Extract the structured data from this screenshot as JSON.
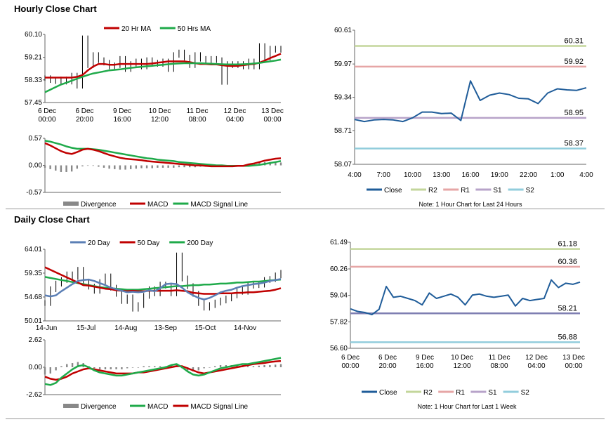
{
  "hourly": {
    "title": "Hourly Close Chart",
    "price_chart": {
      "type": "line",
      "legend": [
        "20 Hr MA",
        "50 Hrs MA"
      ],
      "y_ticks": [
        "60.10",
        "59.21",
        "58.33",
        "57.45"
      ],
      "ylim": [
        57.45,
        60.1
      ],
      "x_ticks": [
        [
          "6 Dec",
          "00:00"
        ],
        [
          "6 Dec",
          "20:00"
        ],
        [
          "9 Dec",
          "16:00"
        ],
        [
          "10 Dec",
          "12:00"
        ],
        [
          "11 Dec",
          "08:00"
        ],
        [
          "12 Dec",
          "04:00"
        ],
        [
          "13 Dec",
          "00:00"
        ]
      ],
      "close": [
        58.4,
        58.32,
        58.28,
        58.35,
        58.26,
        58.5,
        58.1,
        59.95,
        58.9,
        59.3,
        59.1,
        59.0,
        58.85,
        58.9,
        59.15,
        58.75,
        58.95,
        59.05,
        58.85,
        59.1,
        59.0,
        58.95,
        59.05,
        58.75,
        59.3,
        59.4,
        59.2,
        58.9,
        59.3,
        59.15,
        59.05,
        59.15,
        59.1,
        58.25,
        58.95,
        58.9,
        58.95,
        58.85,
        59.05,
        58.85,
        59.65,
        59.2,
        59.55,
        59.5,
        59.55
      ],
      "ma20": [
        58.42,
        58.42,
        58.42,
        58.42,
        58.42,
        58.42,
        58.45,
        58.52,
        58.7,
        58.85,
        58.95,
        58.95,
        58.92,
        58.92,
        58.95,
        58.95,
        58.95,
        58.95,
        58.95,
        58.95,
        58.97,
        59.0,
        59.02,
        59.05,
        59.05,
        59.05,
        59.05,
        59.02,
        58.98,
        58.95,
        58.95,
        58.93,
        58.93,
        58.9,
        58.88,
        58.87,
        58.88,
        58.9,
        58.93,
        58.95,
        59.0,
        59.08,
        59.18,
        59.26,
        59.35
      ],
      "ma50": [
        57.85,
        57.95,
        58.05,
        58.15,
        58.22,
        58.3,
        58.38,
        58.45,
        58.52,
        58.58,
        58.62,
        58.66,
        58.7,
        58.72,
        58.74,
        58.77,
        58.8,
        58.82,
        58.84,
        58.86,
        58.88,
        58.9,
        58.92,
        58.94,
        58.96,
        58.97,
        58.98,
        58.98,
        58.98,
        58.98,
        58.97,
        58.96,
        58.95,
        58.94,
        58.93,
        58.93,
        58.93,
        58.94,
        58.95,
        58.97,
        58.99,
        59.02,
        59.05,
        59.08,
        59.12
      ]
    },
    "macd_chart": {
      "type": "line",
      "legend": [
        "Divergence",
        "MACD",
        "MACD Signal Line"
      ],
      "y_ticks": [
        "0.57",
        "0.00",
        "-0.57"
      ],
      "ylim": [
        -0.57,
        0.57
      ],
      "macd": [
        0.47,
        0.42,
        0.36,
        0.3,
        0.26,
        0.24,
        0.28,
        0.33,
        0.35,
        0.33,
        0.3,
        0.26,
        0.22,
        0.19,
        0.16,
        0.14,
        0.13,
        0.12,
        0.11,
        0.09,
        0.08,
        0.07,
        0.06,
        0.05,
        0.04,
        0.03,
        0.02,
        0.01,
        0.0,
        0.0,
        -0.01,
        -0.02,
        -0.02,
        -0.02,
        -0.02,
        -0.02,
        -0.01,
        -0.01,
        0.02,
        0.04,
        0.07,
        0.1,
        0.12,
        0.14,
        0.15
      ],
      "signal": [
        0.52,
        0.5,
        0.47,
        0.44,
        0.4,
        0.37,
        0.35,
        0.35,
        0.35,
        0.34,
        0.33,
        0.31,
        0.29,
        0.27,
        0.25,
        0.23,
        0.21,
        0.19,
        0.17,
        0.15,
        0.14,
        0.12,
        0.11,
        0.1,
        0.09,
        0.07,
        0.06,
        0.05,
        0.04,
        0.03,
        0.02,
        0.01,
        0.0,
        0.0,
        -0.01,
        -0.01,
        -0.01,
        -0.01,
        -0.01,
        0.0,
        0.01,
        0.03,
        0.05,
        0.07,
        0.09
      ],
      "divergence": [
        -0.05,
        -0.08,
        -0.11,
        -0.14,
        -0.14,
        -0.13,
        -0.07,
        -0.02,
        0.0,
        -0.01,
        -0.03,
        -0.05,
        -0.07,
        -0.08,
        -0.09,
        -0.09,
        -0.08,
        -0.07,
        -0.06,
        -0.06,
        -0.06,
        -0.05,
        -0.05,
        -0.05,
        -0.05,
        -0.04,
        -0.04,
        -0.04,
        -0.04,
        -0.03,
        -0.03,
        -0.03,
        -0.02,
        -0.02,
        -0.01,
        -0.01,
        0.0,
        0.0,
        0.03,
        0.04,
        0.06,
        0.07,
        0.07,
        0.07,
        0.06
      ]
    },
    "levels_chart": {
      "type": "line",
      "y_ticks": [
        "60.61",
        "59.97",
        "59.34",
        "58.71",
        "58.07"
      ],
      "ylim": [
        58.07,
        60.61
      ],
      "x_ticks": [
        "4:00",
        "7:00",
        "10:00",
        "13:00",
        "16:00",
        "19:00",
        "22:00",
        "1:00",
        "4:00"
      ],
      "close": [
        58.92,
        58.88,
        58.91,
        58.92,
        58.91,
        58.88,
        58.95,
        59.06,
        59.06,
        59.03,
        59.04,
        58.9,
        59.65,
        59.28,
        59.38,
        59.42,
        59.39,
        59.32,
        59.31,
        59.22,
        59.42,
        59.5,
        59.48,
        59.47,
        59.52
      ],
      "levels": {
        "R2": 60.31,
        "R1": 59.92,
        "S1": 58.95,
        "S2": 58.37
      },
      "level_labels": [
        "60.31",
        "59.92",
        "58.95",
        "58.37"
      ],
      "legend": [
        "Close",
        "R2",
        "R1",
        "S1",
        "S2"
      ],
      "note": "Note: 1 Hour Chart for Last 24 Hours"
    }
  },
  "daily": {
    "title": "Daily Close Chart",
    "price_chart": {
      "type": "line",
      "legend": [
        "20 Day",
        "50 Day",
        "200 Day"
      ],
      "y_ticks": [
        "64.01",
        "59.35",
        "54.68",
        "50.01"
      ],
      "ylim": [
        50.01,
        64.01
      ],
      "x_ticks": [
        "14-Jun",
        "15-Jul",
        "14-Aug",
        "13-Sep",
        "15-Oct",
        "14-Nov"
      ],
      "close": [
        53.5,
        56.2,
        57.3,
        58.0,
        59.1,
        58.6,
        60.0,
        57.6,
        56.7,
        55.9,
        57.6,
        58.7,
        56.5,
        55.3,
        53.9,
        54.6,
        52.4,
        53.1,
        54.9,
        56.2,
        55.4,
        57.1,
        56.9,
        55.4,
        62.8,
        58.3,
        56.8,
        55.3,
        53.5,
        52.6,
        53.1,
        53.6,
        54.0,
        54.4,
        55.0,
        56.1,
        55.7,
        56.9,
        57.0,
        57.1,
        58.0,
        58.2,
        58.9,
        59.4
      ],
      "ma20": [
        55.0,
        54.8,
        55.0,
        55.8,
        56.5,
        57.2,
        57.8,
        58.0,
        58.1,
        57.8,
        57.4,
        57.0,
        56.5,
        56.2,
        55.9,
        55.6,
        55.7,
        55.6,
        55.7,
        56.0,
        55.8,
        56.4,
        57.2,
        57.3,
        57.2,
        56.5,
        55.6,
        55.0,
        54.5,
        54.2,
        54.5,
        55.0,
        55.6,
        55.9,
        56.1,
        56.5,
        56.8,
        57.0,
        57.2,
        57.3,
        57.5,
        57.8,
        58.0,
        58.2
      ],
      "ma50": [
        60.5,
        60.0,
        59.5,
        59.0,
        58.5,
        58.0,
        57.5,
        57.0,
        56.9,
        56.7,
        56.5,
        56.3,
        56.2,
        56.0,
        55.9,
        55.8,
        55.9,
        55.8,
        55.8,
        55.9,
        55.9,
        55.9,
        55.9,
        55.9,
        56.0,
        55.9,
        55.8,
        55.5,
        55.4,
        55.3,
        55.3,
        55.3,
        55.4,
        55.4,
        55.4,
        55.5,
        55.5,
        55.6,
        55.6,
        55.7,
        55.8,
        55.9,
        56.1,
        56.4
      ],
      "ma200": [
        58.6,
        58.4,
        58.2,
        58.0,
        57.8,
        57.6,
        57.4,
        57.2,
        57.0,
        56.8,
        56.6,
        56.5,
        56.4,
        56.3,
        56.2,
        56.1,
        56.1,
        56.1,
        56.2,
        56.3,
        56.4,
        56.5,
        56.6,
        56.7,
        56.8,
        56.8,
        56.9,
        57.0,
        57.0,
        57.1,
        57.1,
        57.2,
        57.3,
        57.3,
        57.4,
        57.5,
        57.5,
        57.6,
        57.7,
        57.7,
        57.8,
        57.9,
        58.0,
        58.1
      ]
    },
    "macd_chart": {
      "type": "line",
      "legend": [
        "Divergence",
        "MACD",
        "MACD Signal Line"
      ],
      "y_ticks": [
        "2.62",
        "0.00",
        "-2.62"
      ],
      "ylim": [
        -2.62,
        2.62
      ],
      "macd": [
        -1.6,
        -1.7,
        -1.5,
        -1.0,
        -0.6,
        -0.2,
        0.1,
        0.2,
        0.0,
        -0.3,
        -0.5,
        -0.6,
        -0.7,
        -0.8,
        -0.8,
        -0.7,
        -0.6,
        -0.5,
        -0.4,
        -0.3,
        -0.2,
        -0.1,
        0.0,
        0.2,
        0.3,
        0.0,
        -0.4,
        -0.7,
        -0.8,
        -0.7,
        -0.5,
        -0.3,
        -0.1,
        0.0,
        0.1,
        0.2,
        0.3,
        0.3,
        0.4,
        0.5,
        0.6,
        0.7,
        0.8,
        0.9
      ],
      "signal": [
        -0.9,
        -1.1,
        -1.2,
        -1.1,
        -0.9,
        -0.6,
        -0.4,
        -0.2,
        -0.1,
        -0.2,
        -0.3,
        -0.4,
        -0.5,
        -0.6,
        -0.6,
        -0.6,
        -0.6,
        -0.5,
        -0.5,
        -0.4,
        -0.3,
        -0.2,
        -0.1,
        0.0,
        0.1,
        0.1,
        -0.1,
        -0.3,
        -0.5,
        -0.6,
        -0.5,
        -0.4,
        -0.3,
        -0.2,
        -0.1,
        0.0,
        0.1,
        0.2,
        0.3,
        0.35,
        0.4,
        0.5,
        0.55,
        0.6
      ],
      "divergence": [
        -0.7,
        -0.6,
        -0.3,
        0.1,
        0.3,
        0.4,
        0.5,
        0.4,
        0.1,
        -0.1,
        -0.2,
        -0.2,
        -0.2,
        -0.2,
        -0.2,
        -0.1,
        0.0,
        0.0,
        0.1,
        0.1,
        0.1,
        0.1,
        0.1,
        0.2,
        0.2,
        -0.1,
        -0.3,
        -0.4,
        -0.3,
        -0.1,
        0.0,
        0.1,
        0.2,
        0.2,
        0.2,
        0.2,
        0.2,
        0.1,
        0.1,
        0.15,
        0.2,
        0.2,
        0.25,
        0.3
      ]
    },
    "levels_chart": {
      "type": "line",
      "y_ticks": [
        "61.49",
        "60.26",
        "59.04",
        "57.82",
        "56.60"
      ],
      "ylim": [
        56.6,
        61.49
      ],
      "x_ticks": [
        [
          "6 Dec",
          "00:00"
        ],
        [
          "6 Dec",
          "20:00"
        ],
        [
          "9 Dec",
          "16:00"
        ],
        [
          "10 Dec",
          "12:00"
        ],
        [
          "11 Dec",
          "08:00"
        ],
        [
          "12 Dec",
          "04:00"
        ],
        [
          "13 Dec",
          "00:00"
        ]
      ],
      "close": [
        58.42,
        58.3,
        58.25,
        58.15,
        58.4,
        59.45,
        58.95,
        59.0,
        58.9,
        58.8,
        58.6,
        59.15,
        58.9,
        59.0,
        59.1,
        58.95,
        58.6,
        59.05,
        59.1,
        59.0,
        58.95,
        59.0,
        59.05,
        58.55,
        58.9,
        58.8,
        58.85,
        58.9,
        59.75,
        59.4,
        59.6,
        59.55,
        59.65
      ],
      "levels": {
        "R2": 61.18,
        "R1": 60.36,
        "S1": 58.21,
        "S2": 56.88
      },
      "level_labels": [
        "61.18",
        "60.36",
        "58.21",
        "56.88"
      ],
      "legend": [
        "Close",
        "R2",
        "R1",
        "S1",
        "S2"
      ],
      "note": "Note: 1 Hour Chart for Last 1 Week"
    }
  },
  "colors": {
    "red": "#c00000",
    "green": "#1faa4a",
    "blue_ma": "#5b7fb5",
    "close": "#1f5c99",
    "grey": "#888888",
    "r2": "#c3d69b",
    "r1": "#e6a6a6",
    "s1": "#b7a3c9",
    "s2": "#92cddc",
    "daily_s1": "#7f7fb2"
  }
}
